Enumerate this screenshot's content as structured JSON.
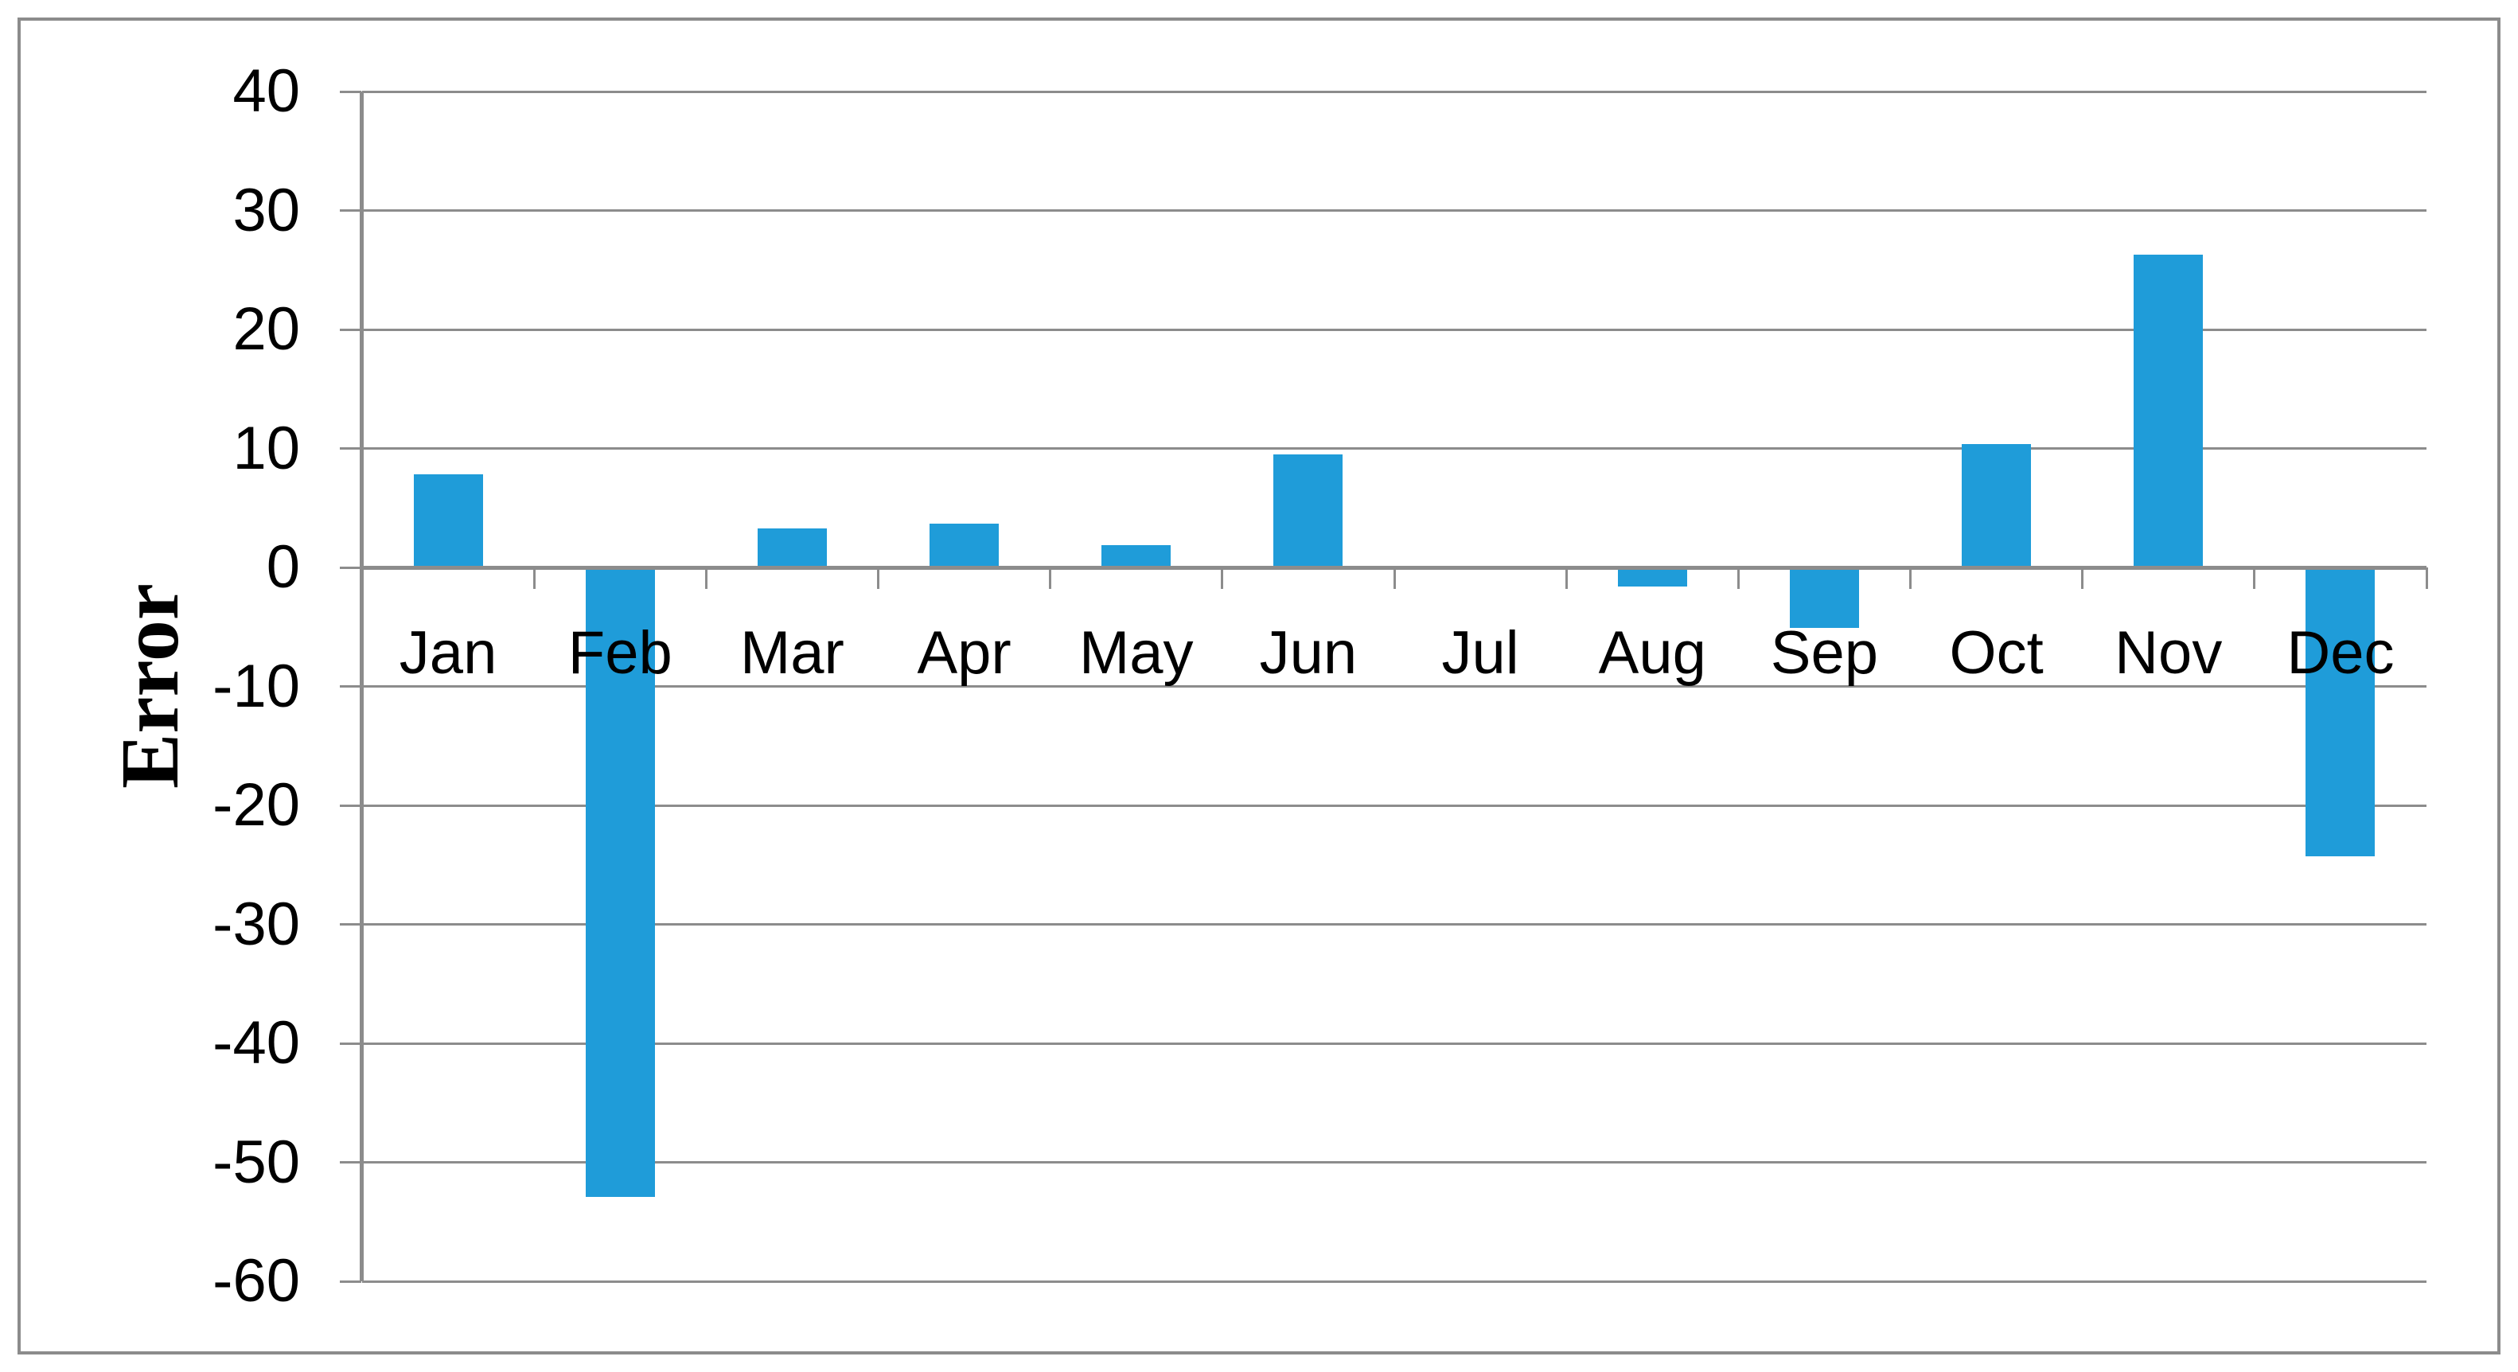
{
  "figure": {
    "background_color": "#FFFFFF",
    "border_color": "#8C8C8C"
  },
  "chart_data": {
    "type": "bar",
    "title": "",
    "xlabel": "",
    "ylabel": "Error",
    "categories": [
      "Jan",
      "Feb",
      "Mar",
      "Apr",
      "May",
      "Jun",
      "Jul",
      "Aug",
      "Sep",
      "Oct",
      "Nov",
      "Dec"
    ],
    "values": [
      7.8,
      -52.9,
      3.3,
      3.7,
      1.9,
      9.5,
      0,
      -1.6,
      -5.1,
      10.4,
      26.3,
      -24.3
    ],
    "ylim": [
      -60,
      40
    ],
    "ytick_step": 10,
    "yticks": [
      40,
      30,
      20,
      10,
      0,
      -10,
      -20,
      -30,
      -40,
      -50,
      -60
    ],
    "grid": true,
    "legend_position": "none",
    "bar_color": "#1F9CD9",
    "gridline_color": "#8C8C8C",
    "axis_color": "#8C8C8C",
    "text_color": "#000000"
  }
}
